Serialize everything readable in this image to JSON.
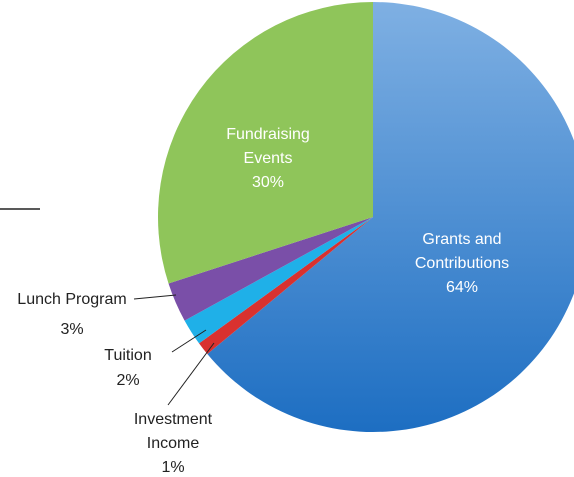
{
  "chart_data": {
    "type": "pie",
    "categories": [
      "Grants and Contributions",
      "Investment Income",
      "Tuition",
      "Lunch Program",
      "Fundraising Events"
    ],
    "values": [
      64,
      1,
      2,
      3,
      30
    ],
    "value_labels": [
      "64%",
      "1%",
      "2%",
      "3%",
      "30%"
    ],
    "colors": [
      "#2f7fd0",
      "#d9312f",
      "#1fb0e8",
      "#7a4fa8",
      "#8fc55a"
    ]
  }
}
